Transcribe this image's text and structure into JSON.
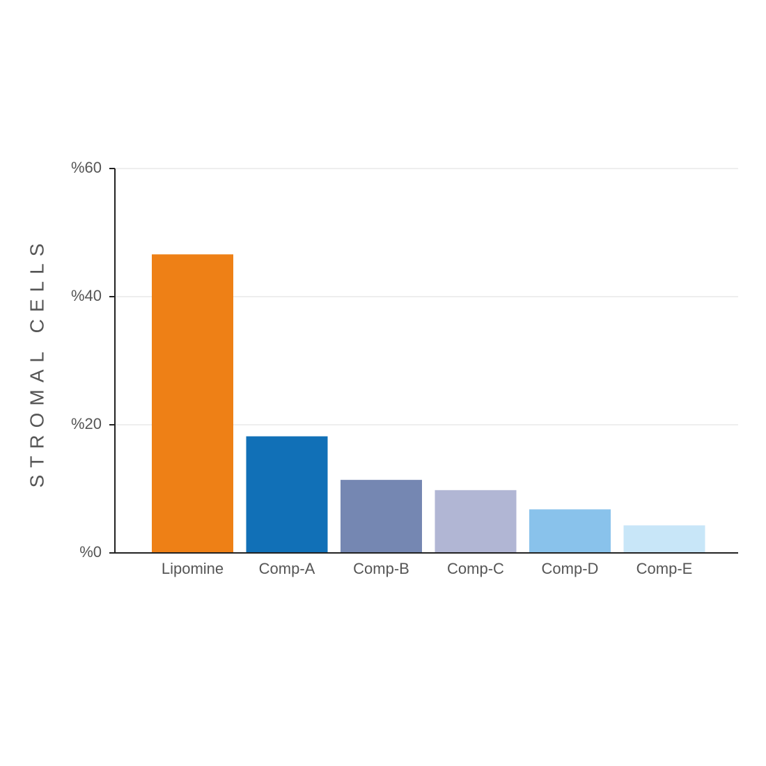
{
  "chart_data": {
    "type": "bar",
    "y_label": "STROMAL CELLS",
    "categories": [
      "Lipomine",
      "Comp-A",
      "Comp-B",
      "Comp-C",
      "Comp-D",
      "Comp-E"
    ],
    "values": [
      46.6,
      18.2,
      11.4,
      9.8,
      6.8,
      4.3
    ],
    "colors": [
      "#ee8016",
      "#1170b7",
      "#7587b2",
      "#b1b6d4",
      "#89c2eb",
      "#c8e6f8"
    ],
    "ylim": [
      0,
      60
    ],
    "yticks": [
      {
        "value": 0,
        "label": "%0"
      },
      {
        "value": 20,
        "label": "%20"
      },
      {
        "value": 40,
        "label": "%40"
      },
      {
        "value": 60,
        "label": "%60"
      }
    ],
    "grid": true
  }
}
